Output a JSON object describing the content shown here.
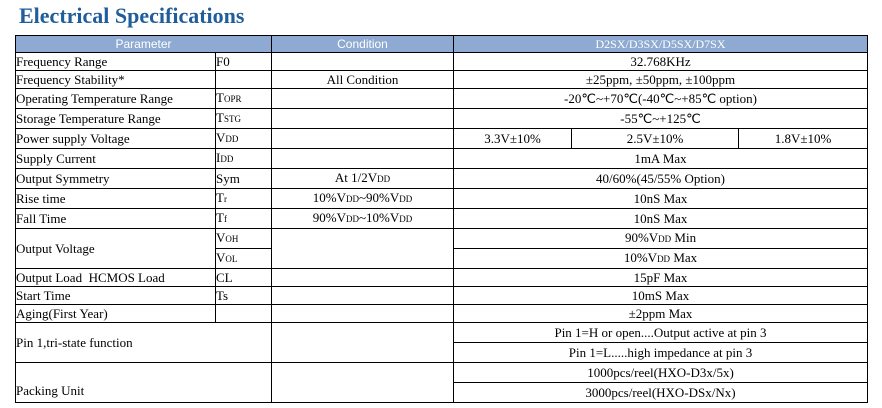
{
  "title": "Electrical Specifications",
  "header": {
    "parameter": "Parameter",
    "condition": "Condition",
    "models": "D2SX/D3SX/D5SX/D7SX"
  },
  "rows": {
    "freq_range": {
      "param": "Frequency Range",
      "sym": "F0",
      "cond": "",
      "val": "32.768KHz"
    },
    "freq_stab": {
      "param": "Frequency Stability*",
      "sym": "",
      "cond": "All Condition",
      "val": "±25ppm, ±50ppm, ±100ppm"
    },
    "op_temp": {
      "param": "Operating Temperature Range",
      "sym_main": "T",
      "sym_sub": "OPR",
      "cond": "",
      "val": "-20℃~+70℃(-40℃~+85℃ option)"
    },
    "st_temp": {
      "param": "Storage Temperature Range",
      "sym_main": "T",
      "sym_sub": "STG",
      "cond": "",
      "val": "-55℃~+125℃"
    },
    "power": {
      "param": "Power supply Voltage",
      "sym_main": "V",
      "sym_sub": "DD",
      "cond": "",
      "val1": "3.3V±10%",
      "val2": "2.5V±10%",
      "val3": "1.8V±10%"
    },
    "supply_current": {
      "param": "Supply Current",
      "sym_main": "I",
      "sym_sub": "DD",
      "cond": "",
      "val": "1mA Max"
    },
    "symmetry": {
      "param": "Output Symmetry",
      "sym": "Sym",
      "cond_main": "At 1/2V",
      "cond_sub": "DD",
      "val": "40/60%(45/55% Option)"
    },
    "rise": {
      "param": "Rise time",
      "sym_main": "T",
      "sym_sub": "r",
      "cond_a": "10%V",
      "cond_a_sub": "DD",
      "cond_b": "~90%V",
      "cond_b_sub": "DD",
      "val": "10nS Max"
    },
    "fall": {
      "param": "Fall Time",
      "sym_main": "T",
      "sym_sub": "f",
      "cond_a": "90%V",
      "cond_a_sub": "DD",
      "cond_b": "~10%V",
      "cond_b_sub": "DD",
      "val": "10nS Max"
    },
    "out_voltage": {
      "param": "Output Voltage",
      "sym1_main": "V",
      "sym1_sub": "OH",
      "sym2_main": "V",
      "sym2_sub": "OL",
      "val1_a": "90%V",
      "val1_sub": "DD",
      "val1_b": " Min",
      "val2_a": "10%V",
      "val2_sub": "DD",
      "val2_b": " Max"
    },
    "out_load": {
      "param": "Output Load  HCMOS Load",
      "sym": "CL",
      "cond": "",
      "val": "15pF Max"
    },
    "start": {
      "param": "Start Time",
      "sym": "Ts",
      "cond": "",
      "val": "10mS Max"
    },
    "aging": {
      "param": "Aging(First Year)",
      "sym": "",
      "cond": "",
      "val": "±2ppm Max"
    },
    "pin1": {
      "param": "Pin 1,tri-state function",
      "val1": "Pin 1=H or open....Output active at pin 3",
      "val2": "Pin 1=L.....high impedance at pin 3"
    },
    "packing": {
      "param": "Packing Unit",
      "val1": "1000pcs/reel(HXO-D3x/5x)",
      "val2": "3000pcs/reel(HXO-DSx/Nx)"
    }
  }
}
